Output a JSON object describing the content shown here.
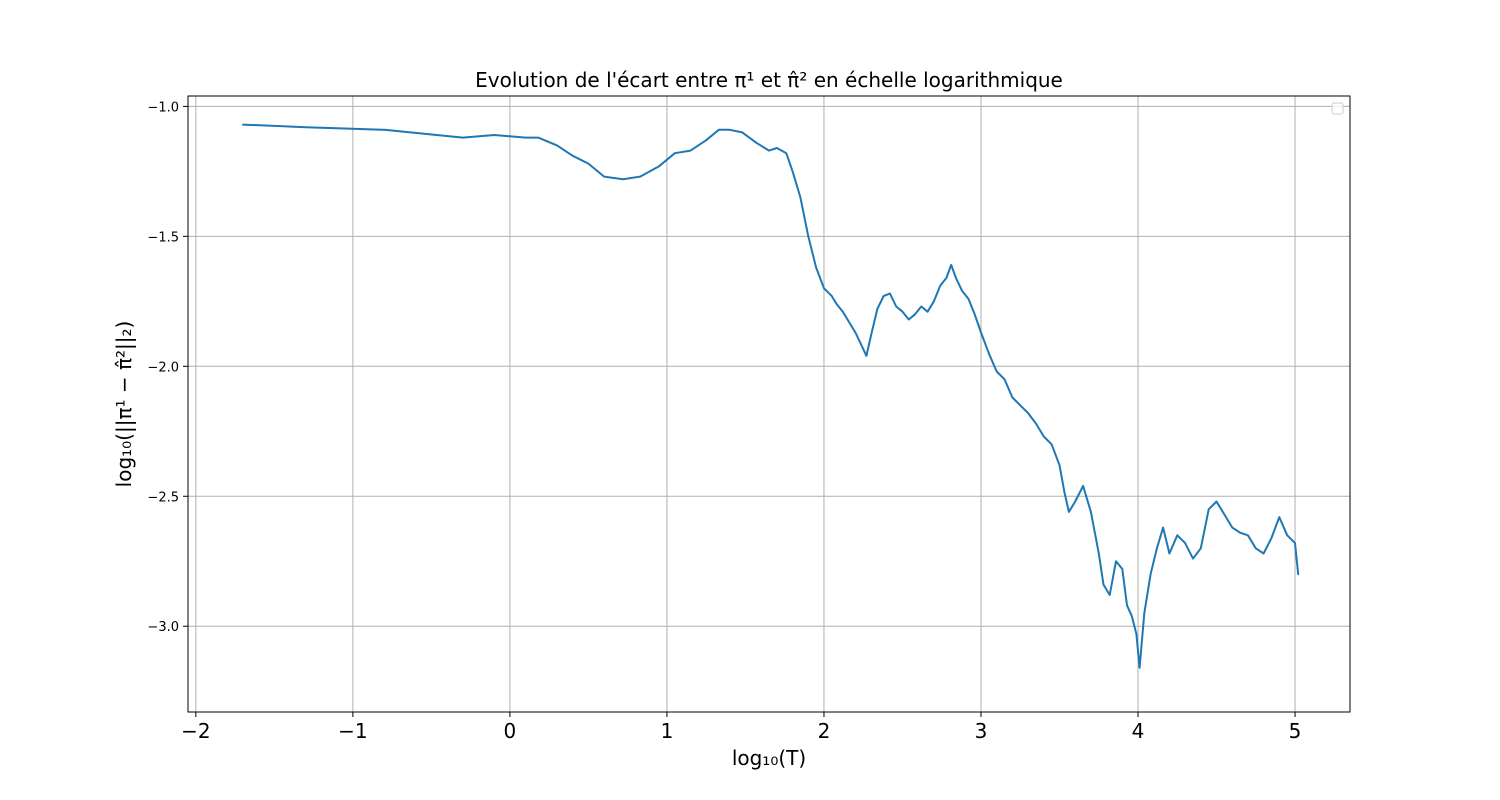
{
  "chart_data": {
    "type": "line",
    "title": "Evolution de l'écart entre π¹ et π̂² en échelle logarithmique",
    "xlabel": "log₁₀(T)",
    "ylabel": "log₁₀(||π¹ − π̂²||₂)",
    "xlim": [
      -2.05,
      5.35
    ],
    "ylim": [
      -3.33,
      -0.96
    ],
    "xticks": [
      -2,
      -1,
      0,
      1,
      2,
      3,
      4,
      5
    ],
    "xtick_labels": [
      "−2",
      "−1",
      "0",
      "1",
      "2",
      "3",
      "4",
      "5"
    ],
    "yticks": [
      -1.0,
      -1.5,
      -2.0,
      -2.5,
      -3.0
    ],
    "ytick_labels": [
      "−1.0",
      "−1.5",
      "−2.0",
      "−2.5",
      "−3.0"
    ],
    "grid": true,
    "legend": "top-right (empty)",
    "color": "#1f77b4",
    "x": [
      -1.7,
      -1.3,
      -0.8,
      -0.3,
      -0.1,
      0.1,
      0.18,
      0.3,
      0.4,
      0.5,
      0.6,
      0.72,
      0.83,
      0.95,
      1.05,
      1.15,
      1.25,
      1.33,
      1.4,
      1.48,
      1.57,
      1.65,
      1.7,
      1.76,
      1.8,
      1.85,
      1.9,
      1.95,
      2.0,
      2.05,
      2.08,
      2.12,
      2.16,
      2.2,
      2.24,
      2.27,
      2.3,
      2.34,
      2.38,
      2.42,
      2.46,
      2.5,
      2.54,
      2.58,
      2.62,
      2.66,
      2.7,
      2.74,
      2.78,
      2.81,
      2.84,
      2.88,
      2.92,
      2.96,
      3.0,
      3.05,
      3.1,
      3.15,
      3.2,
      3.25,
      3.3,
      3.35,
      3.4,
      3.45,
      3.5,
      3.53,
      3.56,
      3.6,
      3.65,
      3.7,
      3.75,
      3.78,
      3.82,
      3.86,
      3.9,
      3.93,
      3.96,
      3.99,
      4.01,
      4.04,
      4.08,
      4.12,
      4.16,
      4.2,
      4.25,
      4.3,
      4.35,
      4.4,
      4.45,
      4.5,
      4.55,
      4.6,
      4.65,
      4.7,
      4.75,
      4.8,
      4.85,
      4.9,
      4.95,
      5.0,
      5.02
    ],
    "values": [
      -1.07,
      -1.08,
      -1.09,
      -1.12,
      -1.11,
      -1.12,
      -1.12,
      -1.15,
      -1.19,
      -1.22,
      -1.27,
      -1.28,
      -1.27,
      -1.23,
      -1.18,
      -1.17,
      -1.13,
      -1.09,
      -1.09,
      -1.1,
      -1.14,
      -1.17,
      -1.16,
      -1.18,
      -1.25,
      -1.35,
      -1.5,
      -1.62,
      -1.7,
      -1.73,
      -1.76,
      -1.79,
      -1.83,
      -1.87,
      -1.92,
      -1.96,
      -1.88,
      -1.78,
      -1.73,
      -1.72,
      -1.77,
      -1.79,
      -1.82,
      -1.8,
      -1.77,
      -1.79,
      -1.75,
      -1.69,
      -1.66,
      -1.61,
      -1.66,
      -1.71,
      -1.74,
      -1.8,
      -1.87,
      -1.95,
      -2.02,
      -2.05,
      -2.12,
      -2.15,
      -2.18,
      -2.22,
      -2.27,
      -2.3,
      -2.38,
      -2.48,
      -2.56,
      -2.52,
      -2.46,
      -2.56,
      -2.72,
      -2.84,
      -2.88,
      -2.75,
      -2.78,
      -2.92,
      -2.96,
      -3.03,
      -3.16,
      -2.95,
      -2.8,
      -2.7,
      -2.62,
      -2.72,
      -2.65,
      -2.68,
      -2.74,
      -2.7,
      -2.55,
      -2.52,
      -2.57,
      -2.62,
      -2.64,
      -2.65,
      -2.7,
      -2.72,
      -2.66,
      -2.58,
      -2.65,
      -2.68,
      -2.8
    ]
  }
}
